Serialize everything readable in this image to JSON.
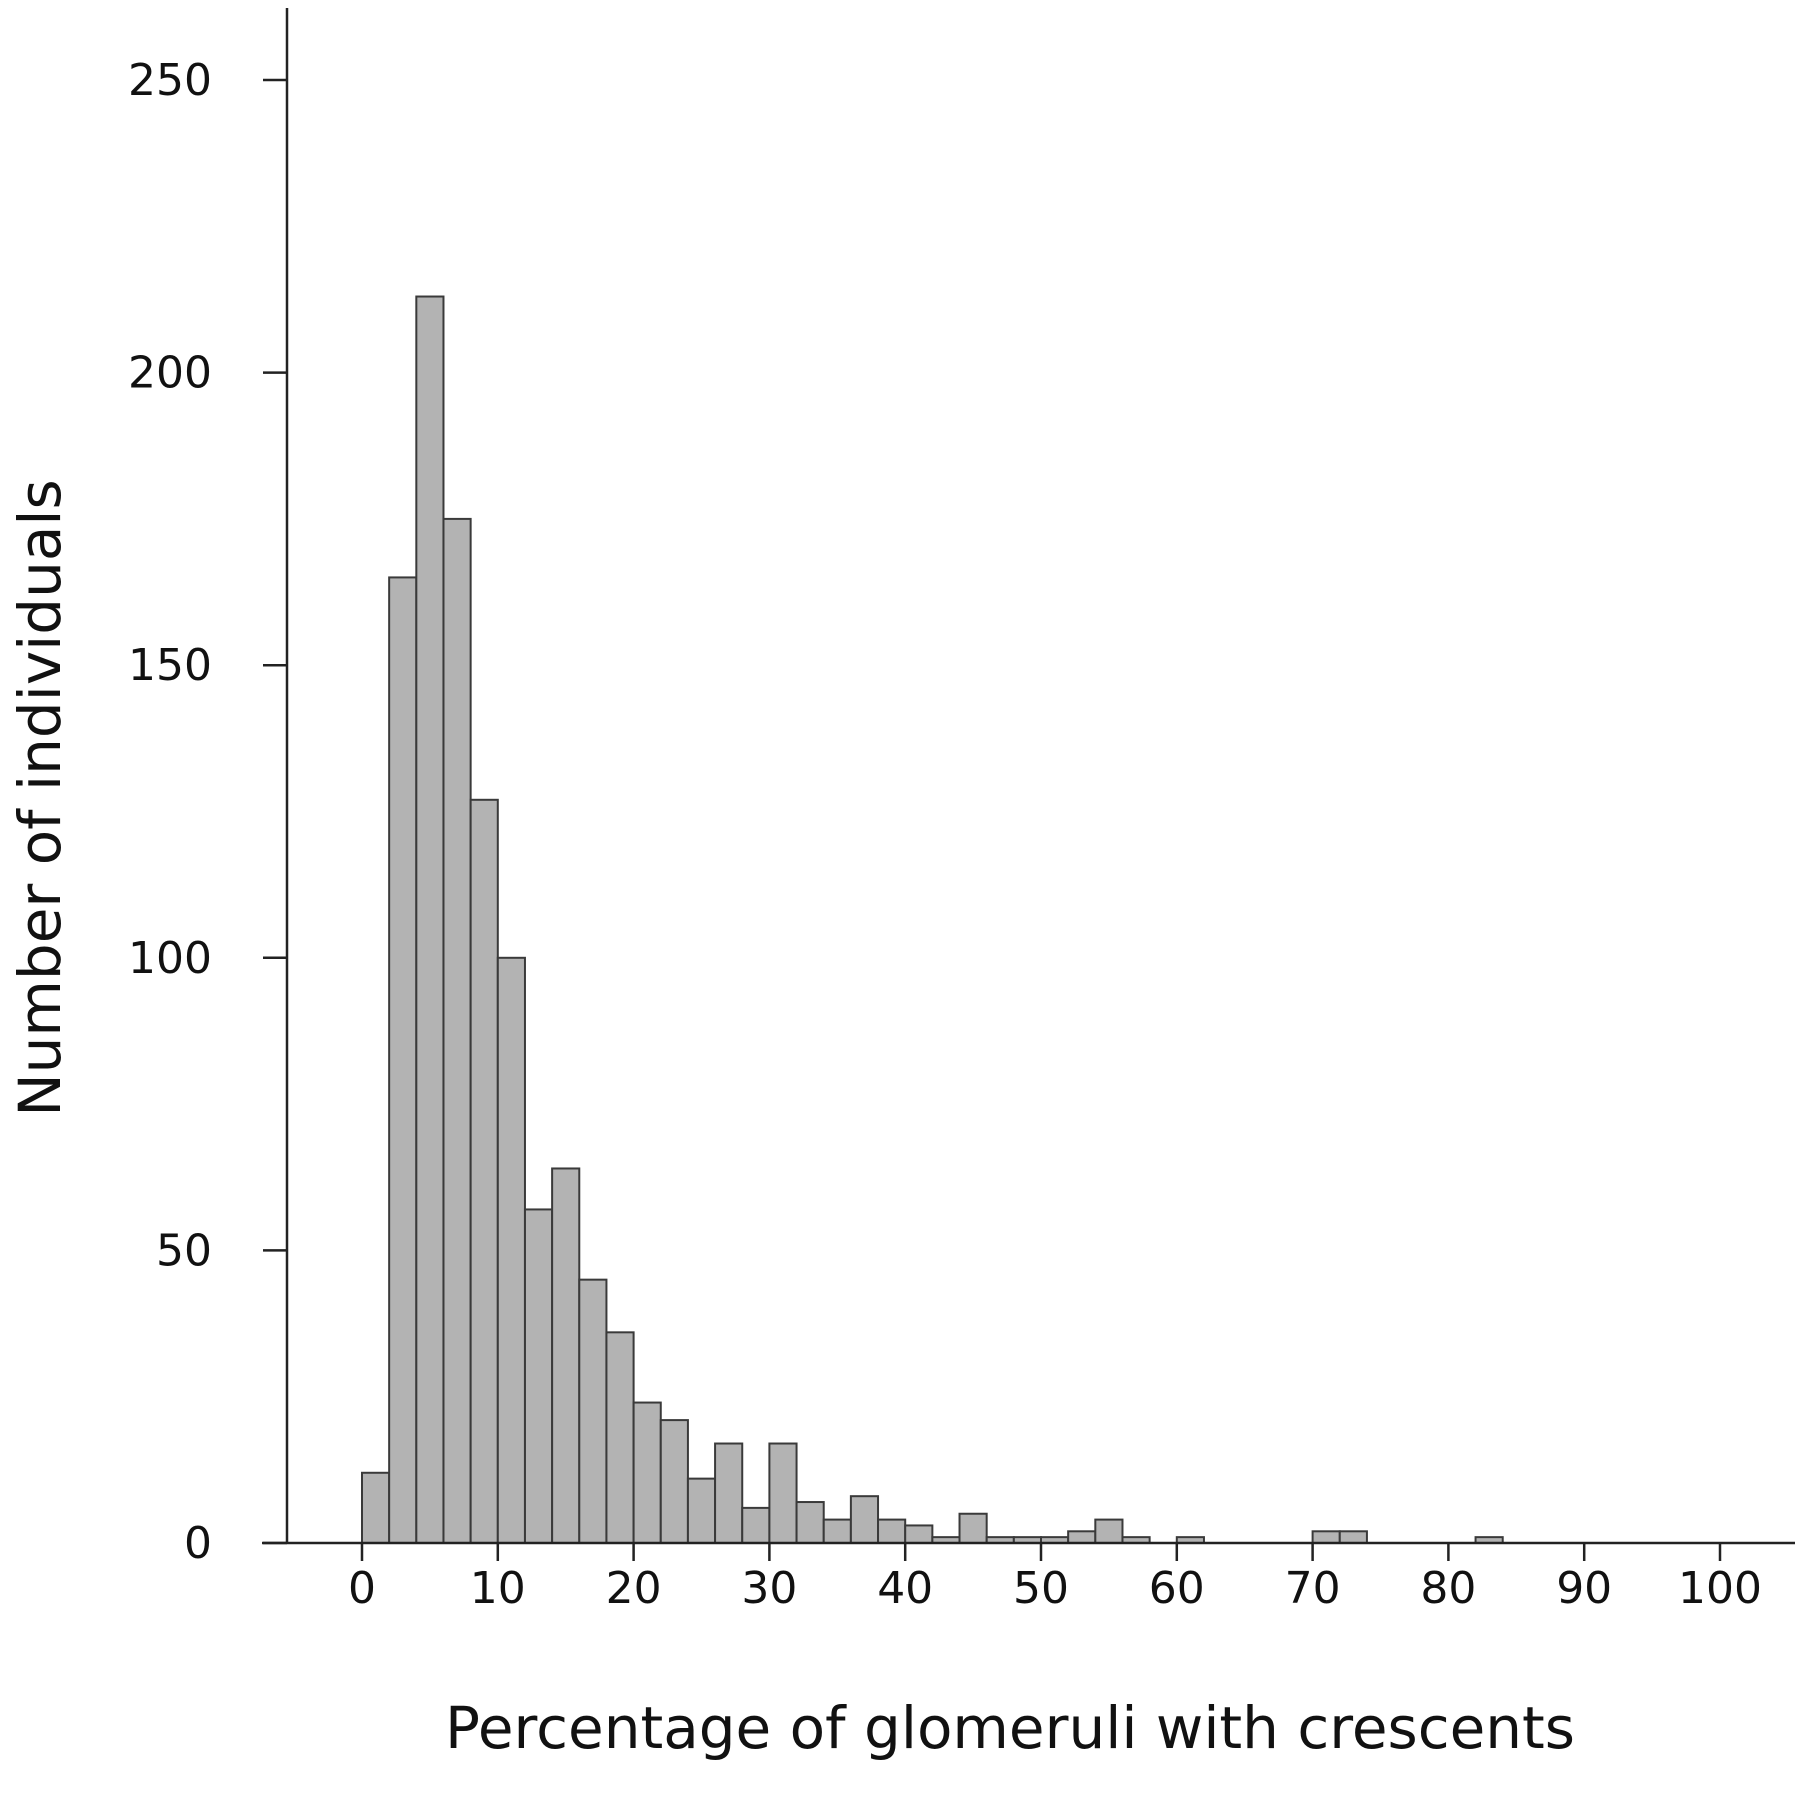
{
  "chart_data": {
    "type": "bar",
    "title": "",
    "xlabel": "Percentage of glomeruli with crescents",
    "ylabel": "Number of individuals",
    "xlim": [
      -6,
      104
    ],
    "ylim": [
      0,
      262
    ],
    "x_ticks": [
      0,
      10,
      20,
      30,
      40,
      50,
      60,
      70,
      80,
      90,
      100
    ],
    "y_ticks": [
      0,
      50,
      100,
      150,
      200,
      250
    ],
    "bin_width": 2,
    "bins_start": [
      0,
      2,
      4,
      6,
      8,
      10,
      12,
      14,
      16,
      18,
      20,
      22,
      24,
      26,
      28,
      30,
      32,
      34,
      36,
      38,
      40,
      42,
      44,
      46,
      48,
      50,
      52,
      54,
      56,
      58,
      60,
      62,
      64,
      66,
      68,
      70,
      72,
      74,
      76,
      78,
      80,
      82,
      84
    ],
    "values": [
      12,
      165,
      213,
      175,
      127,
      100,
      57,
      64,
      45,
      36,
      24,
      21,
      11,
      17,
      6,
      17,
      7,
      4,
      8,
      4,
      3,
      1,
      5,
      1,
      1,
      1,
      2,
      4,
      1,
      0,
      1,
      0,
      0,
      0,
      0,
      2,
      2,
      0,
      0,
      0,
      0,
      1,
      0
    ],
    "grid": false,
    "legend": "none",
    "bar_color": "#b3b3b3",
    "bar_edge_color": "#3a3a3a"
  }
}
